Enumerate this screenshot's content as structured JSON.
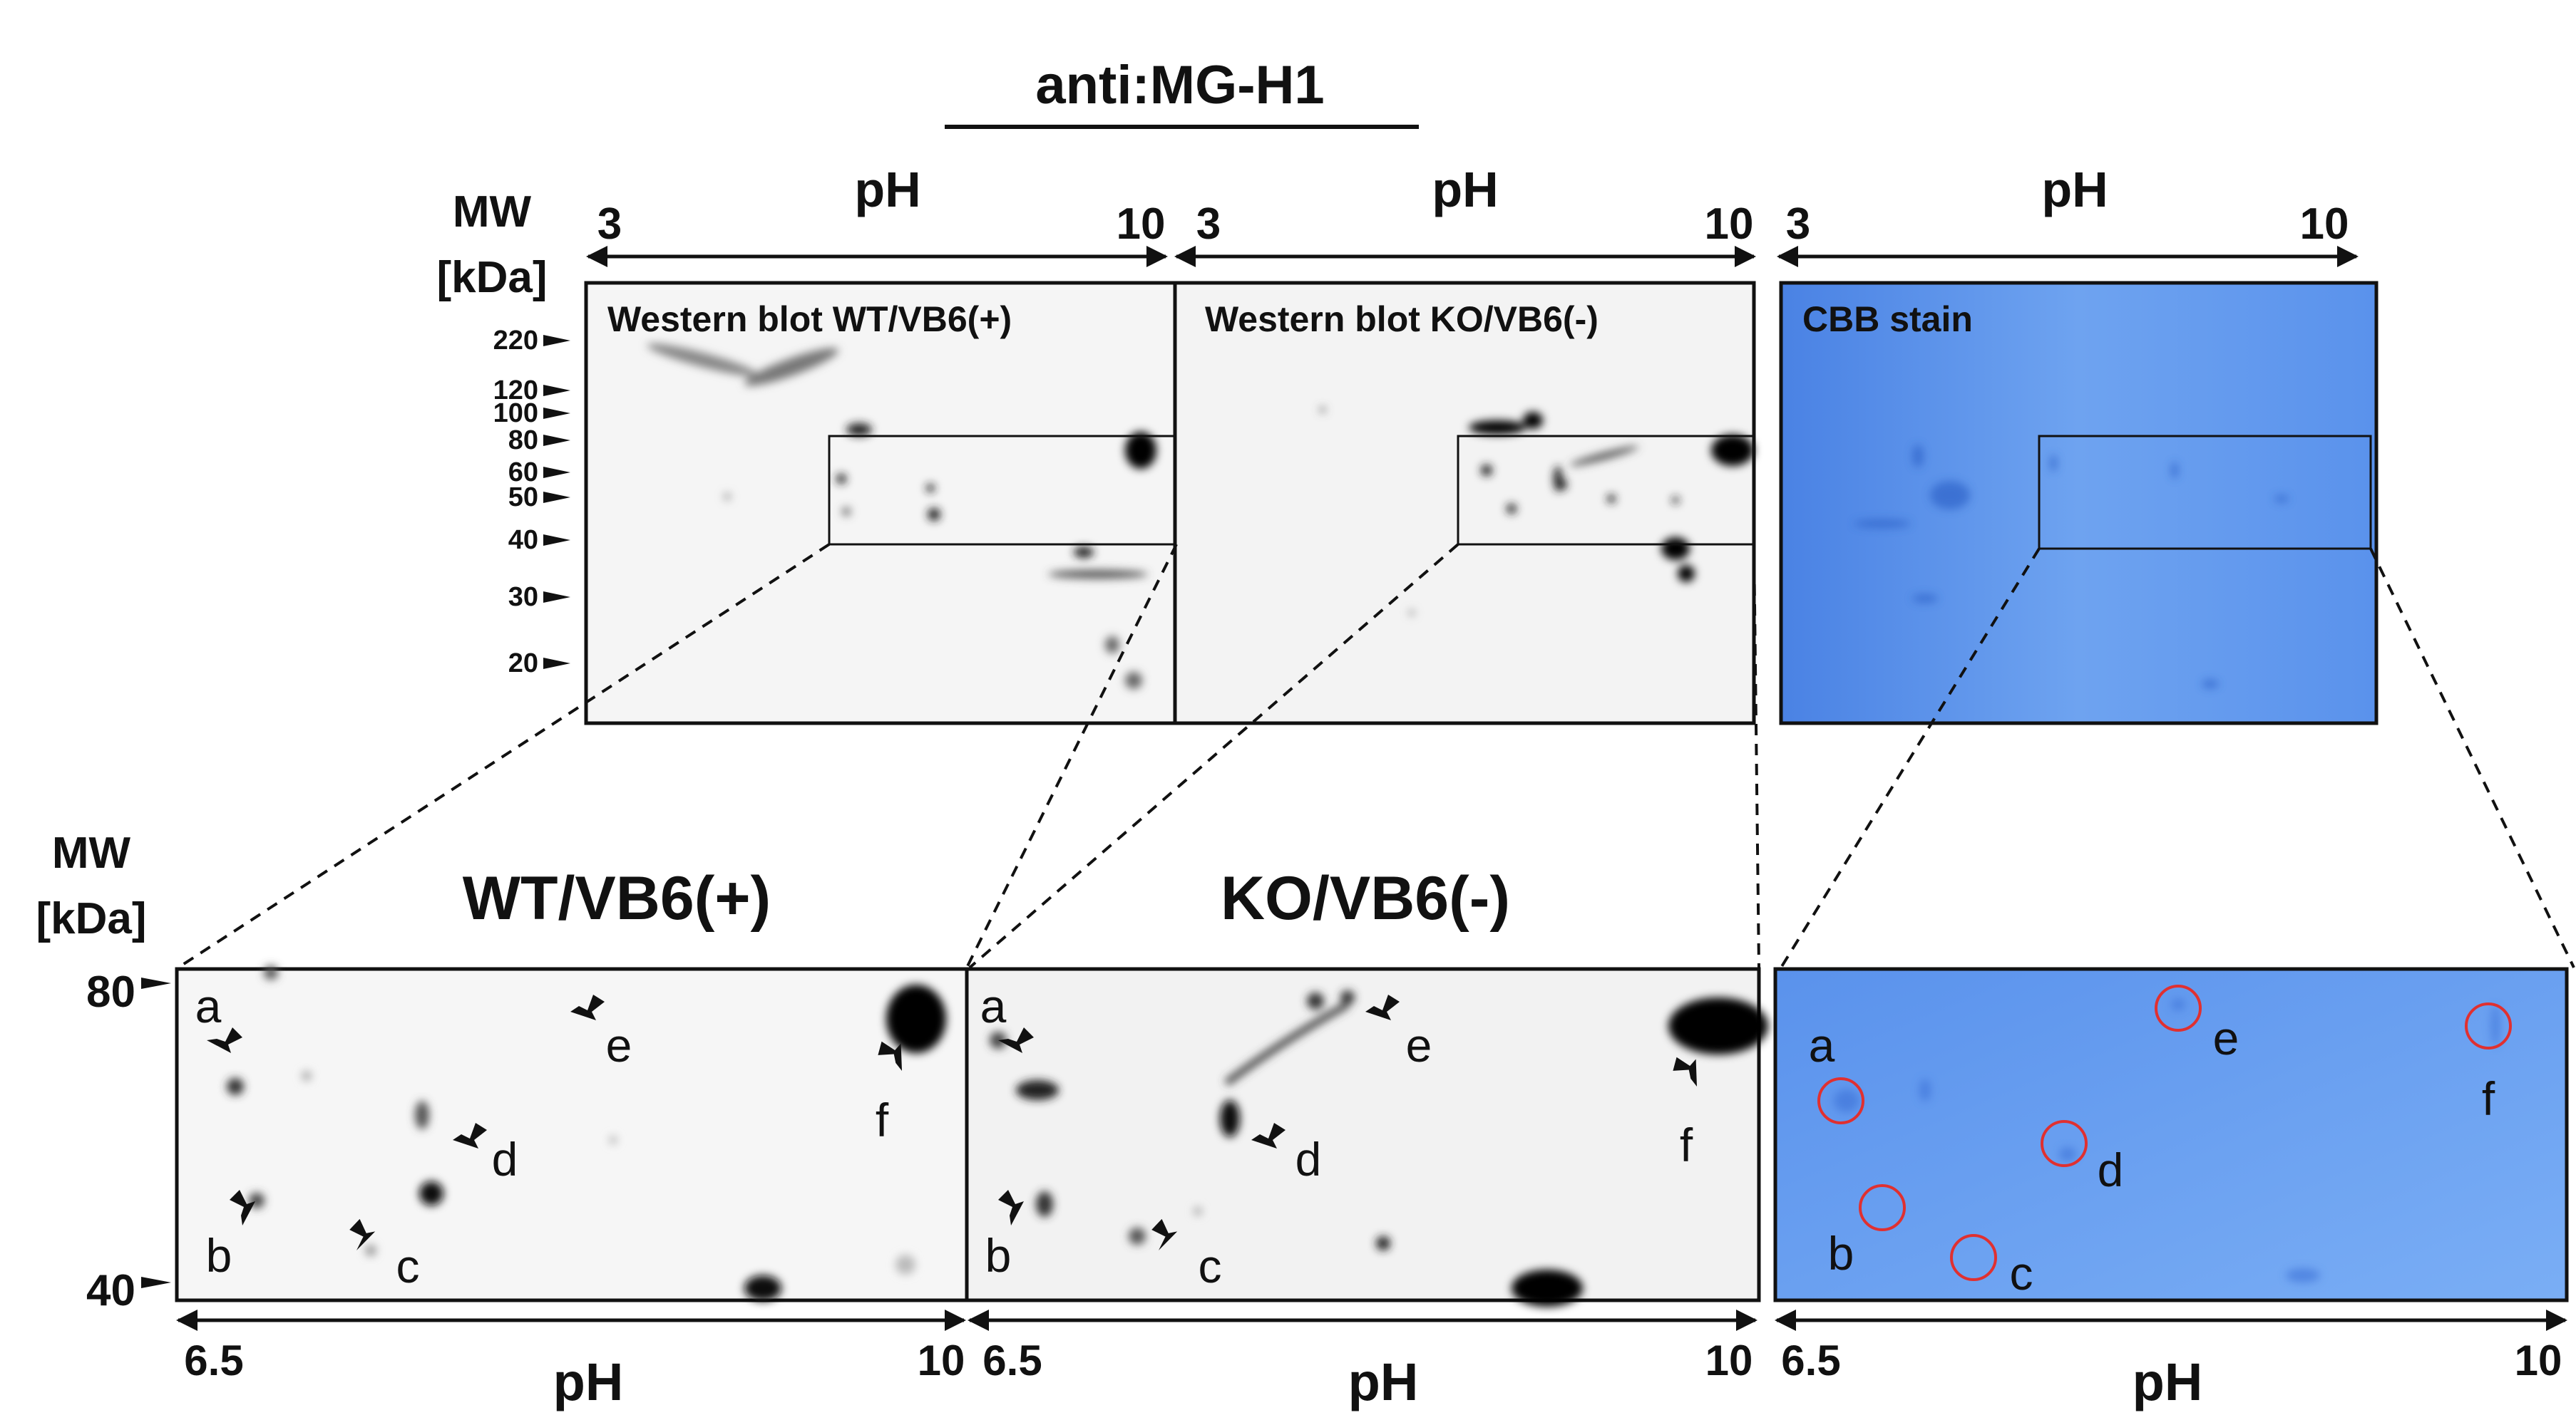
{
  "figure": {
    "antibody_title": "anti:MG-H1",
    "mw_label_line1": "MW",
    "mw_label_line2": "[kDa]",
    "ph_axis_label": "pH",
    "colors": {
      "cbb_blue": "#4d86e6",
      "cbb_light": "#7fb0f5",
      "circle_red": "#e03030",
      "ink": "#111111"
    }
  },
  "top_panels": [
    {
      "title": "Western blot WT/VB6(+)",
      "ph_min": "3",
      "ph_max": "10"
    },
    {
      "title": "Western blot KO/VB6(-)",
      "ph_min": "3",
      "ph_max": "10"
    },
    {
      "title": "CBB stain",
      "ph_min": "3",
      "ph_max": "10"
    }
  ],
  "mw_markers_top": [
    "220",
    "120",
    "100",
    "80",
    "60",
    "50",
    "40",
    "30",
    "20"
  ],
  "bottom_panels": [
    {
      "title": "WT/VB6(+)",
      "ph_min": "6.5",
      "ph_max": "10"
    },
    {
      "title": "KO/VB6(-)",
      "ph_min": "6.5",
      "ph_max": "10"
    },
    {
      "title": "",
      "ph_min": "6.5",
      "ph_max": "10"
    }
  ],
  "mw_markers_bottom": [
    "80",
    "40"
  ],
  "spot_labels": [
    "a",
    "b",
    "c",
    "d",
    "e",
    "f"
  ]
}
